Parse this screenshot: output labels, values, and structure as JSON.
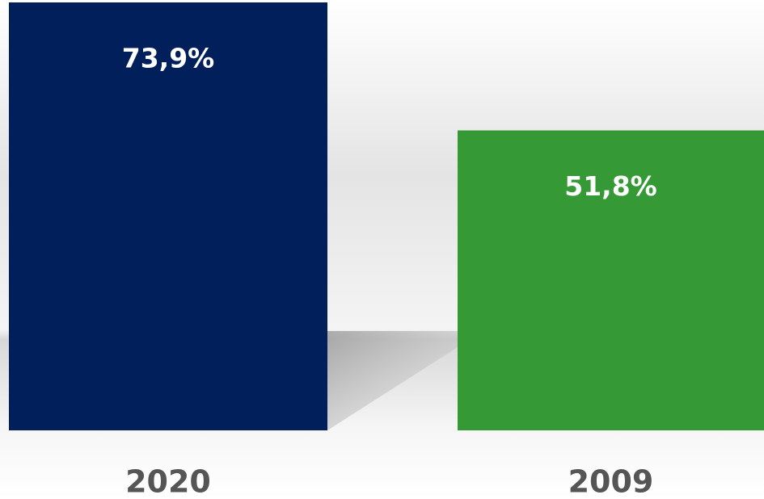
{
  "chart_data": {
    "type": "bar",
    "categories": [
      "2020",
      "2009"
    ],
    "values": [
      73.9,
      51.8
    ],
    "value_labels": [
      "73,9%",
      "51,8%"
    ],
    "colors": [
      "#001f5b",
      "#359a35"
    ]
  }
}
